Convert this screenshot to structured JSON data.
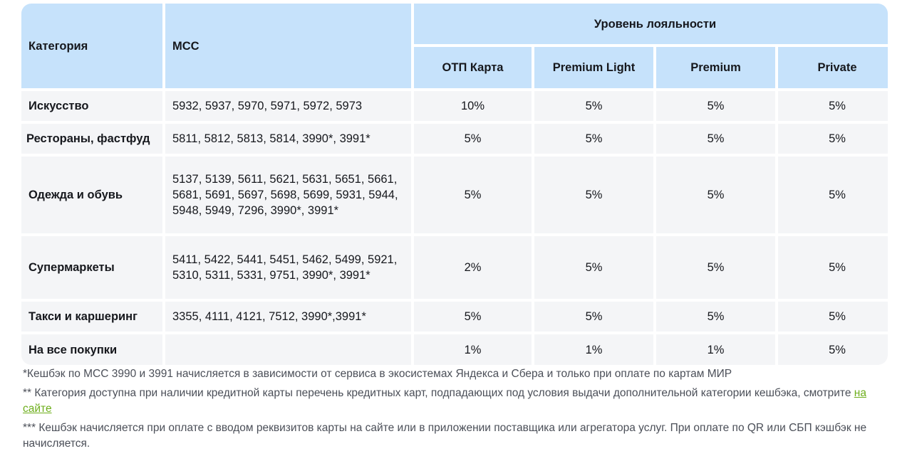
{
  "table": {
    "headers": {
      "category": "Категория",
      "mcc": "MCC",
      "loyalty": "Уровень лояльности",
      "levels": [
        "ОТП Карта",
        "Premium Light",
        "Premium",
        "Private"
      ]
    },
    "rows": [
      {
        "category": "Искусство",
        "mcc": "5932, 5937, 5970, 5971, 5972, 5973",
        "values": [
          "10%",
          "5%",
          "5%",
          "5%"
        ]
      },
      {
        "category": "Рестораны, фастфуд",
        "mcc": "5811, 5812, 5813, 5814, 3990*, 3991*",
        "values": [
          "5%",
          "5%",
          "5%",
          "5%"
        ]
      },
      {
        "category": "Одежда и обувь",
        "mcc": "5137, 5139, 5611, 5621, 5631, 5651, 5661, 5681, 5691, 5697, 5698, 5699, 5931, 5944, 5948, 5949, 7296, 3990*, 3991*",
        "values": [
          "5%",
          "5%",
          "5%",
          "5%"
        ]
      },
      {
        "category": "Супермаркеты",
        "mcc": "5411, 5422, 5441, 5451, 5462, 5499, 5921, 5310, 5311, 5331, 9751, 3990*, 3991*",
        "values": [
          "2%",
          "5%",
          "5%",
          "5%"
        ]
      },
      {
        "category": "Такси и каршеринг",
        "mcc": "3355, 4111, 4121, 7512, 3990*,3991*",
        "values": [
          "5%",
          "5%",
          "5%",
          "5%"
        ]
      },
      {
        "category": "На все покупки",
        "mcc": "",
        "values": [
          "1%",
          "1%",
          "1%",
          "5%"
        ]
      }
    ]
  },
  "notes": {
    "n1": "*Кешбэк по MCC 3990 и 3991 начисляется в зависимости от сервиса в экосистемах Яндекса и Сбера и только при оплате по картам МИР",
    "n2_text": "** Категория доступна при наличии кредитной карты перечень кредитных карт, подпадающих под условия выдачи дополнительной категории кешбэка, смотрите ",
    "n2_link": "на сайте",
    "n3": "*** Кешбэк начисляется при оплате с вводом реквизитов карты на сайте или в приложении поставщика или агрегатора  услуг. При оплате по QR или СБП кэшбэк не начисляется."
  },
  "colors": {
    "header_bg": "#c6e2fb",
    "body_bg": "#f4f5f7",
    "link": "#6dae1b"
  }
}
